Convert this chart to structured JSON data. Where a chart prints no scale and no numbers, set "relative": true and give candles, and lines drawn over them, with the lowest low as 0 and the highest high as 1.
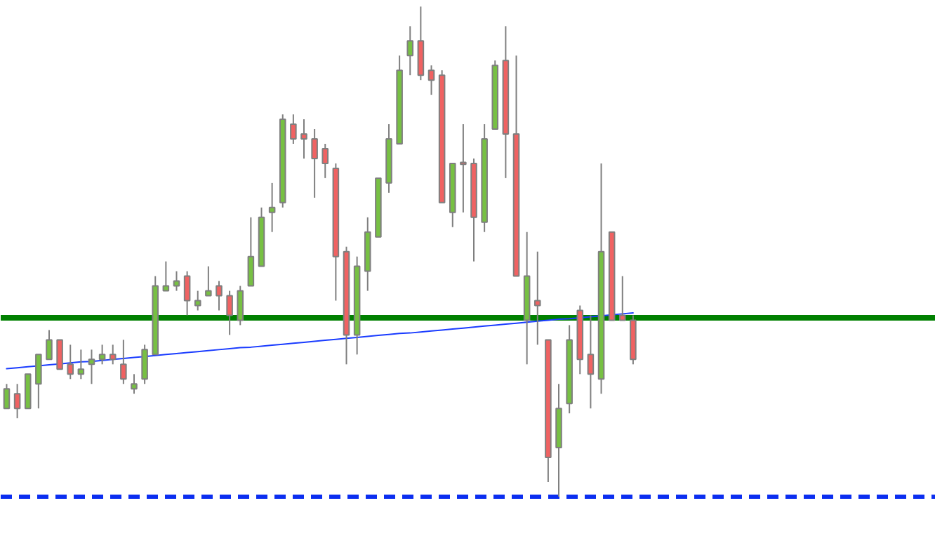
{
  "chart_data": {
    "type": "candlestick",
    "relative": true,
    "categories": [
      null,
      null,
      null,
      null,
      null,
      null,
      null,
      null,
      null,
      null,
      null,
      null,
      null,
      null,
      null,
      null,
      null,
      null,
      null,
      null,
      null,
      null,
      null,
      null,
      null,
      null,
      null,
      null,
      null,
      null,
      null,
      null,
      null,
      null,
      null,
      null,
      null,
      null,
      null,
      null,
      null,
      null,
      null,
      null,
      null,
      null,
      null,
      null,
      null,
      null,
      null,
      null,
      null,
      null,
      null,
      null,
      null,
      null,
      null,
      null
    ],
    "ohlc": [
      [
        0.18,
        0.23,
        0.18,
        0.22
      ],
      [
        0.21,
        0.23,
        0.16,
        0.18
      ],
      [
        0.18,
        0.25,
        0.18,
        0.25
      ],
      [
        0.23,
        0.29,
        0.18,
        0.29
      ],
      [
        0.28,
        0.34,
        0.28,
        0.32
      ],
      [
        0.32,
        0.32,
        0.26,
        0.26
      ],
      [
        0.27,
        0.31,
        0.24,
        0.25
      ],
      [
        0.25,
        0.3,
        0.24,
        0.26
      ],
      [
        0.27,
        0.3,
        0.23,
        0.28
      ],
      [
        0.28,
        0.31,
        0.27,
        0.29
      ],
      [
        0.29,
        0.31,
        0.27,
        0.28
      ],
      [
        0.27,
        0.32,
        0.23,
        0.24
      ],
      [
        0.22,
        0.25,
        0.21,
        0.23
      ],
      [
        0.24,
        0.31,
        0.23,
        0.3
      ],
      [
        0.29,
        0.45,
        0.29,
        0.43
      ],
      [
        0.42,
        0.48,
        0.42,
        0.43
      ],
      [
        0.43,
        0.46,
        0.42,
        0.44
      ],
      [
        0.45,
        0.46,
        0.37,
        0.4
      ],
      [
        0.39,
        0.42,
        0.38,
        0.4
      ],
      [
        0.41,
        0.47,
        0.41,
        0.42
      ],
      [
        0.43,
        0.44,
        0.38,
        0.41
      ],
      [
        0.41,
        0.42,
        0.33,
        0.37
      ],
      [
        0.36,
        0.43,
        0.35,
        0.42
      ],
      [
        0.43,
        0.57,
        0.43,
        0.49
      ],
      [
        0.47,
        0.59,
        0.47,
        0.57
      ],
      [
        0.58,
        0.64,
        0.54,
        0.59
      ],
      [
        0.6,
        0.78,
        0.59,
        0.77
      ],
      [
        0.76,
        0.78,
        0.72,
        0.73
      ],
      [
        0.74,
        0.77,
        0.69,
        0.73
      ],
      [
        0.73,
        0.75,
        0.61,
        0.69
      ],
      [
        0.71,
        0.72,
        0.65,
        0.68
      ],
      [
        0.67,
        0.68,
        0.4,
        0.49
      ],
      [
        0.5,
        0.51,
        0.27,
        0.33
      ],
      [
        0.33,
        0.49,
        0.29,
        0.47
      ],
      [
        0.46,
        0.57,
        0.42,
        0.54
      ],
      [
        0.53,
        0.65,
        0.53,
        0.65
      ],
      [
        0.64,
        0.76,
        0.62,
        0.73
      ],
      [
        0.72,
        0.9,
        0.72,
        0.87
      ],
      [
        0.9,
        0.96,
        0.86,
        0.93
      ],
      [
        0.93,
        1.0,
        0.85,
        0.86
      ],
      [
        0.87,
        0.88,
        0.82,
        0.85
      ],
      [
        0.86,
        0.87,
        0.6,
        0.6
      ],
      [
        0.58,
        0.68,
        0.55,
        0.68
      ],
      [
        0.68,
        0.76,
        0.58,
        0.68
      ],
      [
        0.68,
        0.69,
        0.48,
        0.57
      ],
      [
        0.56,
        0.76,
        0.54,
        0.73
      ],
      [
        0.75,
        0.89,
        0.75,
        0.88
      ],
      [
        0.89,
        0.96,
        0.65,
        0.74
      ],
      [
        0.74,
        0.9,
        0.45,
        0.45
      ],
      [
        0.36,
        0.54,
        0.27,
        0.45
      ],
      [
        0.4,
        0.5,
        0.31,
        0.39
      ],
      [
        0.32,
        0.32,
        0.03,
        0.08
      ],
      [
        0.1,
        0.23,
        0.0,
        0.18
      ],
      [
        0.19,
        0.35,
        0.17,
        0.32
      ],
      [
        0.38,
        0.39,
        0.25,
        0.28
      ],
      [
        0.29,
        0.37,
        0.18,
        0.25
      ],
      [
        0.24,
        0.68,
        0.21,
        0.5
      ],
      [
        0.54,
        0.54,
        0.36,
        0.36
      ],
      [
        0.37,
        0.45,
        0.36,
        0.36
      ],
      [
        0.36,
        0.37,
        0.27,
        0.28
      ]
    ],
    "colors": [
      "#77c043",
      "#f06262",
      "#77c043",
      "#77c043",
      "#77c043",
      "#f06262",
      "#f06262",
      "#77c043",
      "#77c043",
      "#77c043",
      "#f06262",
      "#f06262",
      "#77c043",
      "#77c043",
      "#77c043",
      "#77c043",
      "#77c043",
      "#f06262",
      "#77c043",
      "#77c043",
      "#f06262",
      "#f06262",
      "#77c043",
      "#77c043",
      "#77c043",
      "#77c043",
      "#77c043",
      "#f06262",
      "#f06262",
      "#f06262",
      "#f06262",
      "#f06262",
      "#f06262",
      "#77c043",
      "#77c043",
      "#77c043",
      "#77c043",
      "#77c043",
      "#77c043",
      "#f06262",
      "#f06262",
      "#f06262",
      "#77c043",
      "#f06262",
      "#f06262",
      "#77c043",
      "#77c043",
      "#f06262",
      "#f06262",
      "#77c043",
      "#f06262",
      "#f06262",
      "#77c043",
      "#77c043",
      "#f06262",
      "#f06262",
      "#77c043",
      "#f06262",
      "#f06262",
      "#f06262"
    ],
    "series": [
      {
        "type": "line",
        "color": "#1a3cff",
        "values": [
          0.261,
          0.263,
          0.265,
          0.267,
          0.269,
          0.271,
          0.273,
          0.275,
          0.276,
          0.278,
          0.28,
          0.282,
          0.284,
          0.286,
          0.288,
          0.29,
          0.292,
          0.294,
          0.296,
          0.298,
          0.3,
          0.302,
          0.304,
          0.305,
          0.307,
          0.309,
          0.311,
          0.313,
          0.315,
          0.317,
          0.319,
          0.321,
          0.323,
          0.325,
          0.327,
          0.329,
          0.331,
          0.333,
          0.334,
          0.336,
          0.338,
          0.34,
          0.342,
          0.344,
          0.346,
          0.348,
          0.35,
          0.352,
          0.354,
          0.356,
          0.358,
          0.36,
          0.362,
          0.363,
          0.365,
          0.367,
          0.369,
          0.371,
          0.373,
          0.375
        ]
      }
    ],
    "ref_lines": [
      {
        "axis": "y",
        "value": 0.365,
        "color": "#008000",
        "line_style": "solid"
      },
      {
        "axis": "y",
        "value": 0,
        "color": "#0b2ef0",
        "line_style": "dashed"
      }
    ]
  }
}
